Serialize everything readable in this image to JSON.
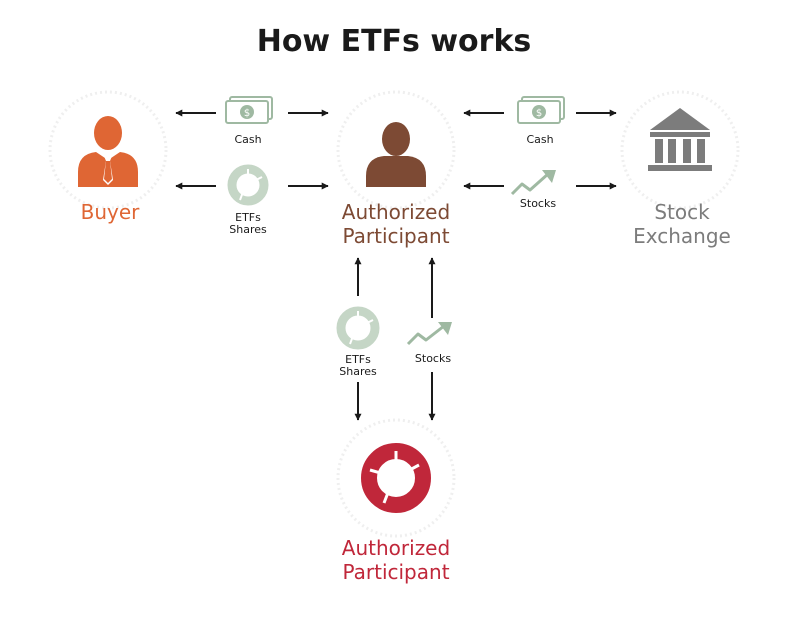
{
  "title": "How ETFs works",
  "nodes": {
    "buyer": {
      "label": "Buyer",
      "color": "#df6634"
    },
    "ap_top": {
      "label_line1": "Authorized",
      "label_line2": "Participant",
      "color": "#7d4a34"
    },
    "stock_exchange": {
      "label_line1": "Stock",
      "label_line2": "Exchange",
      "color": "#7c7c7c"
    },
    "ap_bottom": {
      "label_line1": "Authorized",
      "label_line2": "Participant",
      "color": "#c0273a"
    }
  },
  "flows": {
    "buyer_cash": "Cash",
    "buyer_etf_line1": "ETFs",
    "buyer_etf_line2": "Shares",
    "exchange_cash": "Cash",
    "exchange_stocks": "Stocks",
    "vertical_etf_line1": "ETFs",
    "vertical_etf_line2": "Shares",
    "vertical_stocks": "Stocks"
  },
  "colors": {
    "icon_green": "#c5d6c6",
    "icon_green_dark": "#9fb9a2",
    "arrow": "#1a1a1a",
    "title": "#1a1a1a"
  },
  "icons": [
    "person-icon",
    "bank-icon",
    "cash-icon",
    "donut-icon",
    "trend-arrow-icon",
    "arrow-icon"
  ]
}
